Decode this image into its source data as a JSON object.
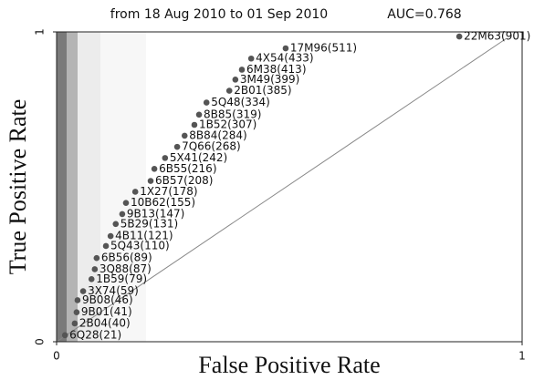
{
  "chart_data": {
    "type": "scatter",
    "title": "from 18 Aug 2010 to 01 Sep 2010",
    "subtitle": "AUC=0.768",
    "x_label": "False Positive Rate",
    "y_label": "True Positive Rate",
    "xlim": [
      0,
      1
    ],
    "ylim": [
      0,
      1
    ],
    "xticks": [
      0,
      1
    ],
    "yticks": [
      0,
      1
    ],
    "color": "#555555",
    "series": [
      {
        "labels": [
          "6Q28(21)",
          "2B04(40)",
          "9B01(41)",
          "9B08(46)",
          "3X74(59)",
          "1B59(79)",
          "3Q88(87)",
          "6B56(89)",
          "5Q43(110)",
          "4B11(121)",
          "5B29(131)",
          "9B13(147)",
          "10B62(155)",
          "1X27(178)",
          "6B57(208)",
          "6B55(216)",
          "5X41(242)",
          "7Q66(268)",
          "8B84(284)",
          "1B52(307)",
          "8B85(319)",
          "5Q48(334)",
          "2B01(385)",
          "3M49(399)",
          "6M38(413)",
          "4X54(433)",
          "17M96(511)",
          "22M63(901)"
        ],
        "x": [
          0.018,
          0.039,
          0.043,
          0.045,
          0.057,
          0.075,
          0.082,
          0.086,
          0.106,
          0.116,
          0.127,
          0.141,
          0.149,
          0.169,
          0.202,
          0.21,
          0.233,
          0.259,
          0.275,
          0.296,
          0.306,
          0.322,
          0.371,
          0.384,
          0.398,
          0.418,
          0.492,
          0.865
        ],
        "values": [
          0.021,
          0.059,
          0.095,
          0.134,
          0.163,
          0.202,
          0.234,
          0.27,
          0.309,
          0.341,
          0.38,
          0.412,
          0.448,
          0.484,
          0.519,
          0.558,
          0.593,
          0.629,
          0.665,
          0.7,
          0.733,
          0.772,
          0.81,
          0.846,
          0.878,
          0.914,
          0.947,
          0.985
        ]
      }
    ]
  }
}
